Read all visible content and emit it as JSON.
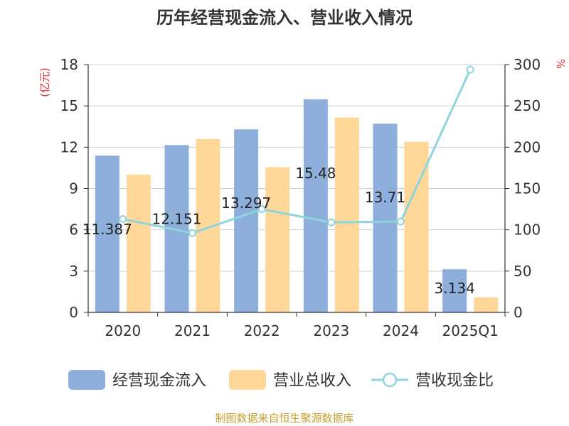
{
  "chart_data": {
    "type": "bar",
    "title": "历年经营现金流入、营业收入情况",
    "left_unit": "(亿元)",
    "right_unit": "%",
    "categories": [
      "2020",
      "2021",
      "2022",
      "2023",
      "2024",
      "2025Q1"
    ],
    "y_left": {
      "min": 0,
      "max": 18,
      "ticks": [
        "0",
        "3",
        "6",
        "9",
        "12",
        "15",
        "18"
      ]
    },
    "y_right": {
      "min": 0,
      "max": 300,
      "ticks": [
        "0",
        "50",
        "100",
        "150",
        "200",
        "250",
        "300"
      ]
    },
    "series": [
      {
        "name": "经营现金流入",
        "kind": "bar",
        "axis": "left",
        "color": "#8eaedb",
        "values": [
          11.387,
          12.151,
          13.297,
          15.48,
          13.71,
          3.134
        ],
        "labels": [
          "11.387",
          "12.151",
          "13.297",
          "15.48",
          "13.71",
          "3.134"
        ]
      },
      {
        "name": "营业总收入",
        "kind": "bar",
        "axis": "left",
        "color": "#ffd899",
        "values": [
          10.0,
          12.6,
          10.55,
          14.15,
          12.4,
          1.1
        ]
      },
      {
        "name": "营收现金比",
        "kind": "line",
        "axis": "right",
        "color": "#8fd4dc",
        "values": [
          113,
          96,
          125,
          109,
          110,
          294
        ]
      }
    ],
    "grid": true,
    "legend_position": "bottom"
  },
  "footer": "制图数据来自恒生聚源数据库"
}
